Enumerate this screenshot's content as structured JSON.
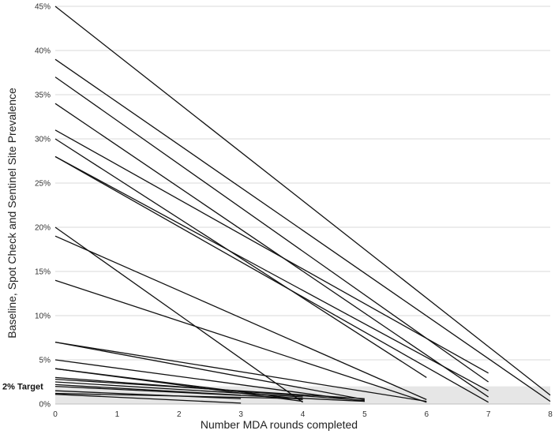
{
  "chart_data": {
    "type": "line",
    "xlabel": "Number MDA rounds completed",
    "ylabel": "Baseline, Spot Check and Sentinel Site Prevalence",
    "xlim": [
      0,
      8
    ],
    "ylim": [
      0,
      45
    ],
    "x_ticks": [
      "0",
      "1",
      "2",
      "3",
      "4",
      "5",
      "6",
      "7",
      "8"
    ],
    "y_ticks": [
      "0%",
      "5%",
      "10%",
      "15%",
      "20%",
      "25%",
      "30%",
      "35%",
      "40%",
      "45%"
    ],
    "grid": "horizontal",
    "target": {
      "label": "2% Target",
      "value": 2,
      "color": "#e6e6e6"
    },
    "series_color": "#111111",
    "series": [
      {
        "x": [
          0,
          7
        ],
        "y": [
          45,
          6.5
        ]
      },
      {
        "x": [
          7,
          8
        ],
        "y": [
          6.5,
          1
        ]
      },
      {
        "x": [
          0,
          8
        ],
        "y": [
          39,
          0.3
        ]
      },
      {
        "x": [
          0,
          7
        ],
        "y": [
          37,
          2.5
        ]
      },
      {
        "x": [
          0,
          7
        ],
        "y": [
          34,
          0.8
        ]
      },
      {
        "x": [
          0,
          7
        ],
        "y": [
          31,
          3.5
        ]
      },
      {
        "x": [
          0,
          6
        ],
        "y": [
          30,
          3
        ]
      },
      {
        "x": [
          0,
          7
        ],
        "y": [
          28,
          1.5
        ]
      },
      {
        "x": [
          0,
          7
        ],
        "y": [
          28,
          0.2
        ]
      },
      {
        "x": [
          0,
          4
        ],
        "y": [
          20,
          0.2
        ]
      },
      {
        "x": [
          0,
          6
        ],
        "y": [
          19,
          0.5
        ]
      },
      {
        "x": [
          0,
          6
        ],
        "y": [
          14,
          0.2
        ]
      },
      {
        "x": [
          0,
          5
        ],
        "y": [
          7,
          0.5
        ]
      },
      {
        "x": [
          0,
          6
        ],
        "y": [
          7,
          0.3
        ]
      },
      {
        "x": [
          0,
          5
        ],
        "y": [
          5,
          0.3
        ]
      },
      {
        "x": [
          0,
          4
        ],
        "y": [
          4,
          0.5
        ]
      },
      {
        "x": [
          0,
          5
        ],
        "y": [
          3,
          0.4
        ]
      },
      {
        "x": [
          0,
          4
        ],
        "y": [
          4,
          0.3
        ]
      },
      {
        "x": [
          0,
          5
        ],
        "y": [
          2.8,
          0.6
        ]
      },
      {
        "x": [
          0,
          4
        ],
        "y": [
          2.5,
          0.8
        ]
      },
      {
        "x": [
          0,
          3
        ],
        "y": [
          2.2,
          1.0
        ]
      },
      {
        "x": [
          0,
          3
        ],
        "y": [
          1.5,
          0.6
        ]
      },
      {
        "x": [
          0,
          3
        ],
        "y": [
          1.1,
          0.1
        ]
      },
      {
        "x": [
          0,
          4
        ],
        "y": [
          1.2,
          0.6
        ]
      },
      {
        "x": [
          0,
          5
        ],
        "y": [
          2.0,
          0.3
        ]
      }
    ]
  }
}
